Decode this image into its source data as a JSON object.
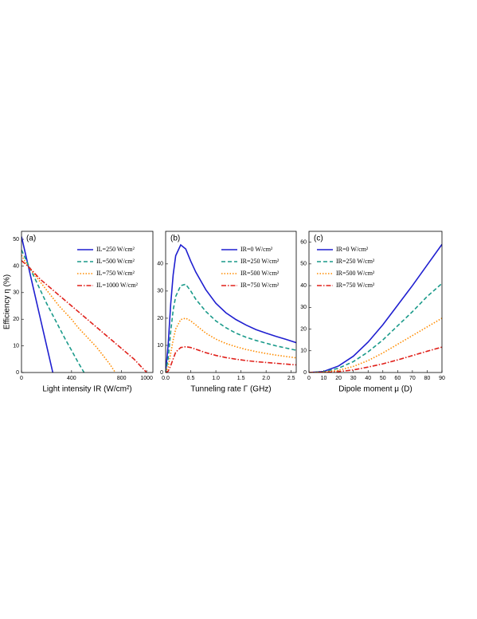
{
  "chart_data": [
    {
      "type": "line",
      "panel_label": "(a)",
      "ylabel": "Efficiency η (%)",
      "xlabel": "Light intensity IR (W/cm²)",
      "xlim": [
        0,
        1050
      ],
      "xticks": [
        0,
        400,
        800,
        1000
      ],
      "ylim": [
        0,
        53
      ],
      "yticks": [
        0,
        10,
        20,
        30,
        40,
        50
      ],
      "legend": "upper right",
      "x": [
        0,
        50,
        100,
        150,
        200,
        250,
        300,
        350,
        400,
        450,
        500,
        550,
        600,
        650,
        700,
        750,
        800,
        850,
        900,
        950,
        1000
      ],
      "series": [
        {
          "name": "IL=250 W/cm²",
          "color": "#1f1fd0",
          "dash": "solid",
          "values": [
            51,
            40.8,
            30.6,
            20.4,
            10.2,
            0,
            null,
            null,
            null,
            null,
            null,
            null,
            null,
            null,
            null,
            null,
            null,
            null,
            null,
            null,
            null
          ]
        },
        {
          "name": "IL=500 W/cm²",
          "color": "#1a9a8a",
          "dash": "dashed",
          "values": [
            46,
            40.9,
            36,
            31,
            26,
            21.5,
            17,
            12.5,
            8.3,
            4,
            0,
            null,
            null,
            null,
            null,
            null,
            null,
            null,
            null,
            null,
            null
          ]
        },
        {
          "name": "IL=750 W/cm²",
          "color": "#ff8c00",
          "dash": "dotted",
          "values": [
            44,
            40,
            37,
            34,
            31,
            28,
            25,
            22.5,
            20,
            17,
            14.5,
            12,
            9.5,
            6.5,
            3.5,
            0,
            null,
            null,
            null,
            null,
            null
          ]
        },
        {
          "name": "IL=1000 W/cm²",
          "color": "#e0201a",
          "dash": "dashdot",
          "values": [
            42,
            40,
            37.5,
            35,
            33,
            31,
            29,
            27,
            25,
            23,
            21,
            19,
            17,
            15,
            13,
            11,
            9,
            7,
            5,
            2.5,
            0
          ]
        }
      ]
    },
    {
      "type": "line",
      "panel_label": "(b)",
      "xlabel": "Tunneling rate Γ (GHz)",
      "xlim": [
        0,
        2.6
      ],
      "xticks": [
        {
          "value": 0,
          "label": "0.0"
        },
        0.5,
        {
          "value": 1,
          "label": "1.0"
        },
        1.5,
        {
          "value": 2,
          "label": "2.0"
        },
        2.5
      ],
      "ylim": [
        0,
        52
      ],
      "yticks": [
        0,
        10,
        20,
        30,
        40
      ],
      "legend": "upper right",
      "x": [
        0,
        0.05,
        0.1,
        0.15,
        0.2,
        0.3,
        0.4,
        0.5,
        0.6,
        0.8,
        1.0,
        1.2,
        1.4,
        1.6,
        1.8,
        2.0,
        2.2,
        2.4,
        2.6
      ],
      "series": [
        {
          "name": "IR=0 W/cm²",
          "color": "#1f1fd0",
          "dash": "solid",
          "values": [
            0,
            10,
            25,
            36,
            43,
            47,
            45.5,
            41,
            37,
            30.5,
            25.5,
            22,
            19.5,
            17.5,
            15.8,
            14.5,
            13.3,
            12.2,
            11
          ]
        },
        {
          "name": "IR=250 W/cm²",
          "color": "#1a9a8a",
          "dash": "dashed",
          "values": [
            0,
            5,
            15,
            23,
            28,
            32,
            32.5,
            30,
            27,
            22.5,
            19,
            16.5,
            14.5,
            13,
            11.8,
            10.8,
            9.8,
            9,
            8.2
          ]
        },
        {
          "name": "IR=500 W/cm²",
          "color": "#ff8c00",
          "dash": "dotted",
          "values": [
            0,
            2,
            7,
            12,
            16,
            19.5,
            20,
            19,
            17.5,
            14.5,
            12.3,
            10.7,
            9.5,
            8.5,
            7.7,
            7,
            6.4,
            5.9,
            5.4
          ]
        },
        {
          "name": "IR=750 W/cm²",
          "color": "#e0201a",
          "dash": "dashdot",
          "values": [
            0,
            0.5,
            2.5,
            5,
            7.5,
            9.2,
            9.5,
            9.2,
            8.6,
            7.3,
            6.3,
            5.5,
            4.9,
            4.4,
            4,
            3.7,
            3.4,
            3.1,
            2.8
          ]
        }
      ]
    },
    {
      "type": "line",
      "panel_label": "(c)",
      "xlabel": "Dipole moment μ (D)",
      "xlim": [
        0,
        90
      ],
      "xticks": [
        0,
        10,
        20,
        30,
        40,
        50,
        60,
        70,
        80,
        90
      ],
      "ylim": [
        0,
        65
      ],
      "yticks": [
        0,
        10,
        20,
        30,
        40,
        50,
        60
      ],
      "legend": "upper left",
      "x": [
        0,
        10,
        20,
        30,
        40,
        50,
        60,
        70,
        80,
        90
      ],
      "series": [
        {
          "name": "IR=0 W/cm²",
          "color": "#1f1fd0",
          "dash": "solid",
          "values": [
            0,
            0.5,
            3,
            7.5,
            14,
            22,
            31,
            40,
            49.5,
            59
          ]
        },
        {
          "name": "IR=250 W/cm²",
          "color": "#1a9a8a",
          "dash": "dashed",
          "values": [
            0,
            0.3,
            2,
            5,
            9.5,
            15,
            21.5,
            28,
            35,
            41
          ]
        },
        {
          "name": "IR=500 W/cm²",
          "color": "#ff8c00",
          "dash": "dotted",
          "values": [
            0,
            0.2,
            1,
            2.8,
            5.5,
            9,
            13,
            17,
            21,
            25
          ]
        },
        {
          "name": "IR=750 W/cm²",
          "color": "#e0201a",
          "dash": "dashdot",
          "values": [
            0,
            0.1,
            0.4,
            1.2,
            2.5,
            4,
            5.8,
            7.8,
            9.8,
            11.7
          ]
        }
      ]
    }
  ]
}
